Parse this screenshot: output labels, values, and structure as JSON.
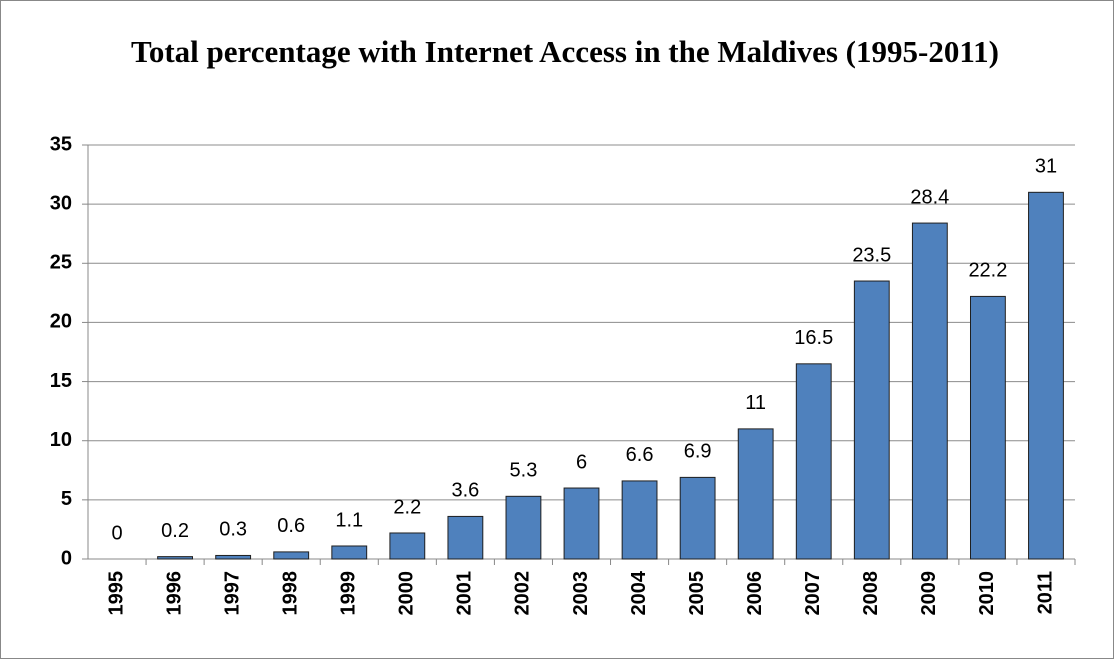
{
  "chart_data": {
    "type": "bar",
    "title": "Total percentage with Internet Access in the Maldives (1995-2011)",
    "categories": [
      "1995",
      "1996",
      "1997",
      "1998",
      "1999",
      "2000",
      "2001",
      "2002",
      "2003",
      "2004",
      "2005",
      "2006",
      "2007",
      "2008",
      "2009",
      "2010",
      "2011"
    ],
    "values": [
      0,
      0.2,
      0.3,
      0.6,
      1.1,
      2.2,
      3.6,
      5.3,
      6,
      6.6,
      6.9,
      11,
      16.5,
      23.5,
      28.4,
      22.2,
      31
    ],
    "color": "#4f81bd",
    "ylim": [
      0,
      35
    ],
    "yticks": [
      0,
      5,
      10,
      15,
      20,
      25,
      30,
      35
    ],
    "grid": true,
    "data_labels": true
  }
}
